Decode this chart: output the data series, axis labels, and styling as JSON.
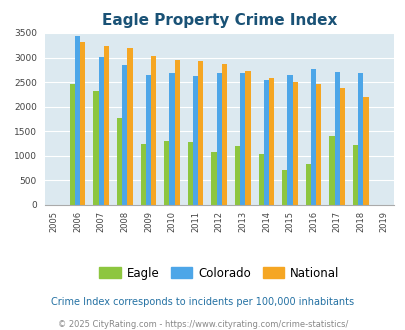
{
  "title": "Eagle Property Crime Index",
  "years": [
    2005,
    2006,
    2007,
    2008,
    2009,
    2010,
    2011,
    2012,
    2013,
    2014,
    2015,
    2016,
    2017,
    2018,
    2019
  ],
  "eagle": [
    null,
    2460,
    2320,
    1770,
    1240,
    1300,
    1270,
    1070,
    1190,
    1040,
    700,
    820,
    1390,
    1210,
    null
  ],
  "colorado": [
    null,
    3430,
    3020,
    2850,
    2650,
    2680,
    2620,
    2680,
    2680,
    2540,
    2640,
    2760,
    2710,
    2680,
    null
  ],
  "national": [
    null,
    3320,
    3240,
    3200,
    3040,
    2950,
    2920,
    2860,
    2720,
    2590,
    2500,
    2460,
    2370,
    2200,
    null
  ],
  "eagle_color": "#8dc63f",
  "colorado_color": "#4da6e8",
  "national_color": "#f5a623",
  "bg_color": "#dce9f0",
  "ylabel_max": 3500,
  "yticks": [
    0,
    500,
    1000,
    1500,
    2000,
    2500,
    3000,
    3500
  ],
  "subtitle": "Crime Index corresponds to incidents per 100,000 inhabitants",
  "footer": "© 2025 CityRating.com - https://www.cityrating.com/crime-statistics/",
  "title_color": "#1a5276",
  "subtitle_color": "#2471a3",
  "footer_color": "#888888"
}
